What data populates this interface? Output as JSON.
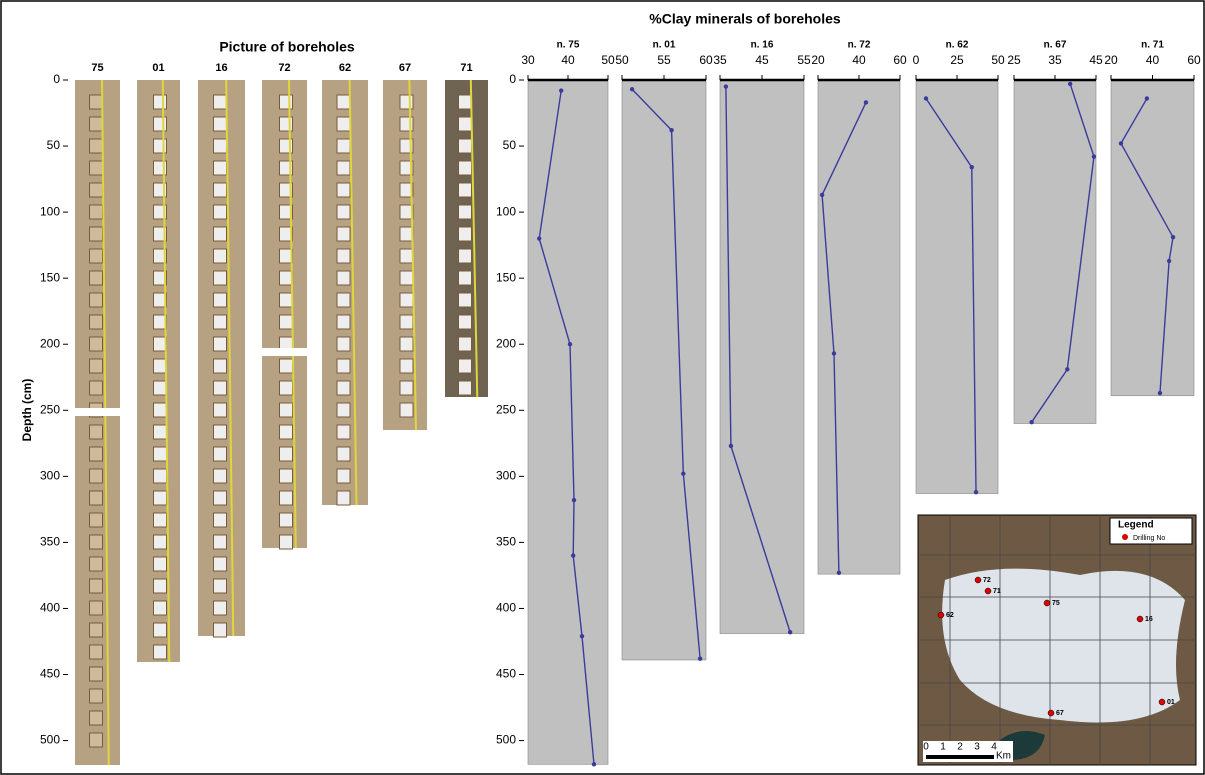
{
  "photos": {
    "title": "Picture of boreholes",
    "ylabel": "Depth (cm)",
    "labels": [
      "75",
      "01",
      "16",
      "72",
      "62",
      "67",
      "71"
    ],
    "ylim": [
      0,
      520
    ],
    "yticks": [
      0,
      50,
      100,
      150,
      200,
      250,
      300,
      350,
      400,
      450,
      500
    ]
  },
  "chart_data": {
    "type": "line",
    "title": "%Clay minerals of boreholes",
    "ylim": [
      0,
      520
    ],
    "yticks": [
      0,
      50,
      100,
      150,
      200,
      250,
      300,
      350,
      400,
      450,
      500
    ],
    "color": "#3b3b9c",
    "panel_color": "#c0c0c0",
    "panels": [
      {
        "name": "n. 75",
        "xlim": [
          30,
          50
        ],
        "xticks": [
          30,
          40,
          50
        ],
        "ylim": [
          0,
          518
        ],
        "clay": [
          38.3,
          32.8,
          40.5,
          41.5,
          41.3,
          43.5,
          46.5
        ],
        "depth": [
          8,
          120,
          200,
          318,
          360,
          421,
          518
        ]
      },
      {
        "name": "n. 01",
        "xlim": [
          50,
          60
        ],
        "xticks": [
          50,
          55,
          60
        ],
        "ylim": [
          0,
          439
        ],
        "clay": [
          51.2,
          55.9,
          57.3,
          59.3
        ],
        "depth": [
          7,
          38,
          298,
          438
        ]
      },
      {
        "name": "n. 16",
        "xlim": [
          35,
          55
        ],
        "xticks": [
          35,
          45,
          55
        ],
        "ylim": [
          0,
          419
        ],
        "clay": [
          36.4,
          37.6,
          51.7
        ],
        "depth": [
          5,
          277,
          418
        ]
      },
      {
        "name": "n. 72",
        "xlim": [
          20,
          60
        ],
        "xticks": [
          20,
          40,
          60
        ],
        "ylim": [
          0,
          374
        ],
        "clay": [
          43.4,
          22,
          27.8,
          30.2
        ],
        "depth": [
          17,
          87,
          207,
          373
        ]
      },
      {
        "name": "n. 62",
        "xlim": [
          0,
          50
        ],
        "xticks": [
          0,
          25,
          50
        ],
        "ylim": [
          0,
          313
        ],
        "clay": [
          6.1,
          34,
          36.6
        ],
        "depth": [
          14,
          66,
          312
        ]
      },
      {
        "name": "n. 67",
        "xlim": [
          25,
          45
        ],
        "xticks": [
          25,
          35,
          45
        ],
        "ylim": [
          0,
          260
        ],
        "clay": [
          38.7,
          44.5,
          38,
          29.3
        ],
        "depth": [
          3,
          58,
          219,
          259
        ]
      },
      {
        "name": "n. 71",
        "xlim": [
          20,
          60
        ],
        "xticks": [
          20,
          40,
          60
        ],
        "ylim": [
          0,
          239
        ],
        "clay": [
          37.3,
          24.8,
          49.9,
          48,
          43.6
        ],
        "depth": [
          14,
          48,
          119,
          137,
          237
        ]
      }
    ]
  },
  "inset": {
    "title": "Legend",
    "item": "Drilling No",
    "points": [
      "72",
      "71",
      "75",
      "16",
      "62",
      "01",
      "67"
    ],
    "scale_labels": [
      "0",
      "1",
      "2",
      "3",
      "4"
    ],
    "scale_unit": "Km"
  }
}
